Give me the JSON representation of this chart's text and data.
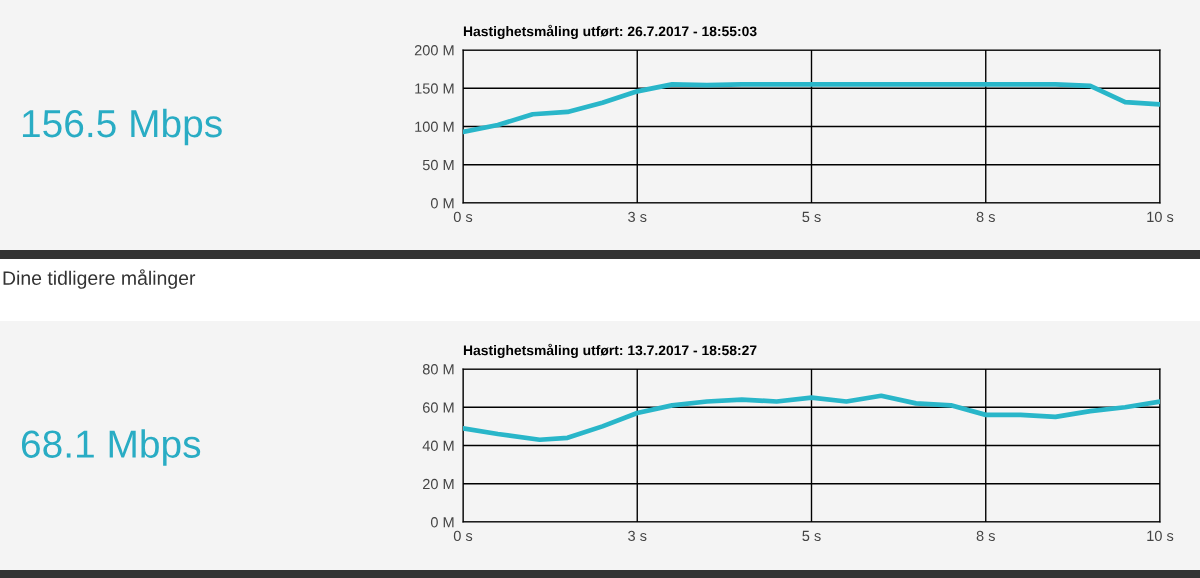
{
  "chart_data": [
    {
      "type": "line",
      "title": "Hastighetsmåling utført: 26.7.2017 - 18:55:03",
      "annotations": [
        "156.5 Mbps"
      ],
      "x": [
        0,
        0.5,
        1,
        1.5,
        2,
        2.5,
        3,
        3.5,
        4,
        4.5,
        5,
        5.5,
        6,
        6.5,
        7,
        7.5,
        8,
        8.5,
        9,
        9.5,
        10
      ],
      "series": [
        {
          "color": "#29b6c9",
          "values": [
            93,
            102,
            116,
            119,
            131,
            146,
            155,
            154,
            155,
            155,
            155,
            155,
            155,
            155,
            155,
            155,
            155,
            155,
            153,
            132,
            129
          ]
        }
      ],
      "xlim": [
        0,
        10
      ],
      "xticks": [
        {
          "value": 0,
          "label": "0 s"
        },
        {
          "value": 2.5,
          "label": "3 s"
        },
        {
          "value": 5,
          "label": "5 s"
        },
        {
          "value": 7.5,
          "label": "8 s"
        },
        {
          "value": 10,
          "label": "10 s"
        }
      ],
      "ylim": [
        0,
        200
      ],
      "yticks": [
        {
          "value": 0,
          "label": "0 M"
        },
        {
          "value": 50,
          "label": "50 M"
        },
        {
          "value": 100,
          "label": "100 M"
        },
        {
          "value": 150,
          "label": "150 M"
        },
        {
          "value": 200,
          "label": "200 M"
        }
      ],
      "grid": true,
      "marker": "none",
      "line_style": "solid"
    },
    {
      "type": "line",
      "title": "Hastighetsmåling utført: 13.7.2017 - 18:58:27",
      "annotations": [
        "Dine tidligere målinger",
        "68.1 Mbps"
      ],
      "x": [
        0,
        0.5,
        1.1,
        1.5,
        2,
        2.5,
        3,
        3.5,
        4,
        4.5,
        5,
        5.5,
        6,
        6.5,
        7,
        7.5,
        8,
        8.5,
        9,
        9.5,
        10
      ],
      "series": [
        {
          "color": "#29b6c9",
          "values": [
            49,
            46,
            43,
            44,
            50,
            57,
            61,
            63,
            64,
            63,
            65,
            63,
            66,
            62,
            61,
            56,
            56,
            55,
            58,
            60,
            63
          ]
        }
      ],
      "xlim": [
        0,
        10
      ],
      "xticks": [
        {
          "value": 0,
          "label": "0 s"
        },
        {
          "value": 2.5,
          "label": "3 s"
        },
        {
          "value": 5,
          "label": "5 s"
        },
        {
          "value": 7.5,
          "label": "8 s"
        },
        {
          "value": 10,
          "label": "10 s"
        }
      ],
      "ylim": [
        0,
        80
      ],
      "yticks": [
        {
          "value": 0,
          "label": "0 M"
        },
        {
          "value": 20,
          "label": "20 M"
        },
        {
          "value": 40,
          "label": "40 M"
        },
        {
          "value": 60,
          "label": "60 M"
        },
        {
          "value": 80,
          "label": "80 M"
        }
      ],
      "grid": true,
      "marker": "none",
      "line_style": "solid"
    }
  ]
}
